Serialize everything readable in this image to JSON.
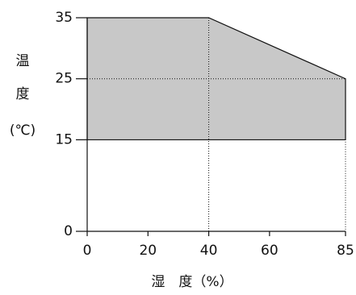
{
  "chart_data": {
    "type": "area",
    "ylabel_lines": [
      "温",
      "度",
      "(℃)"
    ],
    "xlabel": "湿　度（%）",
    "x": [
      0,
      40,
      85
    ],
    "series": [
      {
        "values": [
          35,
          35,
          25
        ],
        "lower": [
          15,
          15,
          15
        ],
        "color": "#c8c8c8"
      }
    ],
    "xlim": [
      0,
      85
    ],
    "xticks": [
      0,
      20,
      40,
      60,
      85
    ],
    "ylim": [
      0,
      35
    ],
    "yticks": [
      0,
      15,
      25,
      35
    ]
  }
}
